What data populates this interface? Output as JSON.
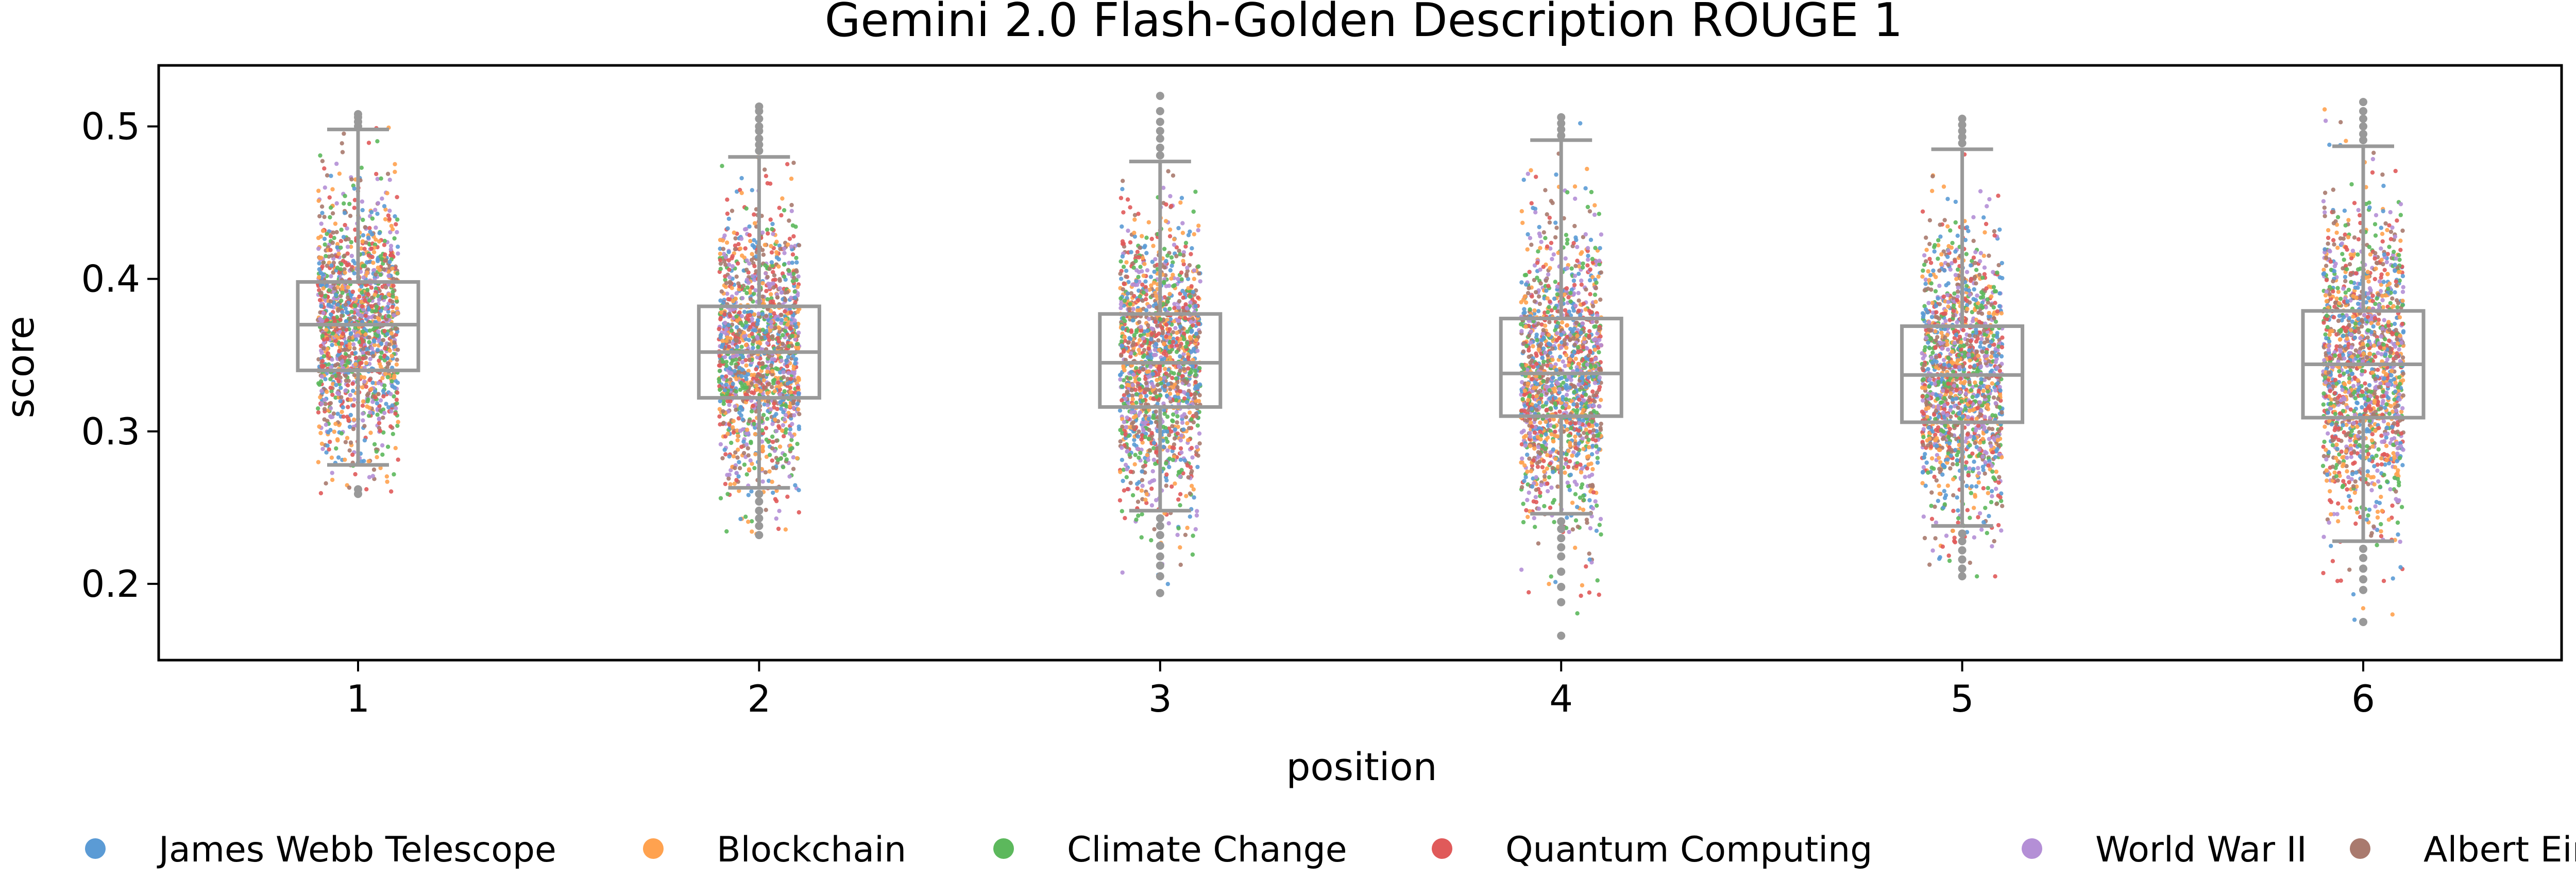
{
  "chart_data": {
    "type": "box+strip",
    "title": "Gemini 2.0 Flash-Golden Description ROUGE 1",
    "xlabel": "position",
    "ylabel": "score",
    "ylim": [
      0.15,
      0.54
    ],
    "yticks": [
      0.2,
      0.3,
      0.4,
      0.5
    ],
    "categories": [
      "1",
      "2",
      "3",
      "4",
      "5",
      "6"
    ],
    "legend_position": "bottom",
    "box_color": "#999999",
    "series": [
      {
        "name": "James Webb Telescope",
        "color": "#5b9bd5"
      },
      {
        "name": "Blockchain",
        "color": "#ffa24f"
      },
      {
        "name": "Climate Change",
        "color": "#5cb85c"
      },
      {
        "name": "Quantum Computing",
        "color": "#e05a5a"
      },
      {
        "name": "World War II",
        "color": "#b48fd6"
      },
      {
        "name": "Albert Einstein",
        "color": "#a97a6e"
      }
    ],
    "boxes": [
      {
        "position": "1",
        "whisker_low": 0.278,
        "q1": 0.34,
        "median": 0.37,
        "q3": 0.398,
        "whisker_high": 0.498,
        "points_range": [
          0.258,
          0.51
        ],
        "outliers": [
          0.5,
          0.503,
          0.506,
          0.508,
          0.262,
          0.259
        ]
      },
      {
        "position": "2",
        "whisker_low": 0.263,
        "q1": 0.322,
        "median": 0.352,
        "q3": 0.382,
        "whisker_high": 0.48,
        "points_range": [
          0.23,
          0.515
        ],
        "outliers": [
          0.484,
          0.488,
          0.492,
          0.497,
          0.5,
          0.505,
          0.51,
          0.513,
          0.259,
          0.254,
          0.248,
          0.243,
          0.238,
          0.232
        ]
      },
      {
        "position": "3",
        "whisker_low": 0.248,
        "q1": 0.316,
        "median": 0.345,
        "q3": 0.377,
        "whisker_high": 0.477,
        "points_range": [
          0.193,
          0.521
        ],
        "outliers": [
          0.481,
          0.486,
          0.492,
          0.497,
          0.503,
          0.51,
          0.52,
          0.243,
          0.238,
          0.232,
          0.225,
          0.218,
          0.212,
          0.205,
          0.194
        ]
      },
      {
        "position": "4",
        "whisker_low": 0.246,
        "q1": 0.31,
        "median": 0.338,
        "q3": 0.374,
        "whisker_high": 0.491,
        "points_range": [
          0.166,
          0.509
        ],
        "outliers": [
          0.494,
          0.498,
          0.502,
          0.506,
          0.241,
          0.236,
          0.23,
          0.224,
          0.218,
          0.208,
          0.198,
          0.188,
          0.166
        ]
      },
      {
        "position": "5",
        "whisker_low": 0.238,
        "q1": 0.306,
        "median": 0.337,
        "q3": 0.369,
        "whisker_high": 0.485,
        "points_range": [
          0.204,
          0.506
        ],
        "outliers": [
          0.489,
          0.493,
          0.497,
          0.501,
          0.505,
          0.233,
          0.228,
          0.222,
          0.216,
          0.21,
          0.205
        ]
      },
      {
        "position": "6",
        "whisker_low": 0.228,
        "q1": 0.309,
        "median": 0.344,
        "q3": 0.379,
        "whisker_high": 0.487,
        "points_range": [
          0.174,
          0.518
        ],
        "outliers": [
          0.491,
          0.495,
          0.5,
          0.505,
          0.51,
          0.516,
          0.223,
          0.217,
          0.21,
          0.203,
          0.196,
          0.175
        ]
      }
    ]
  }
}
